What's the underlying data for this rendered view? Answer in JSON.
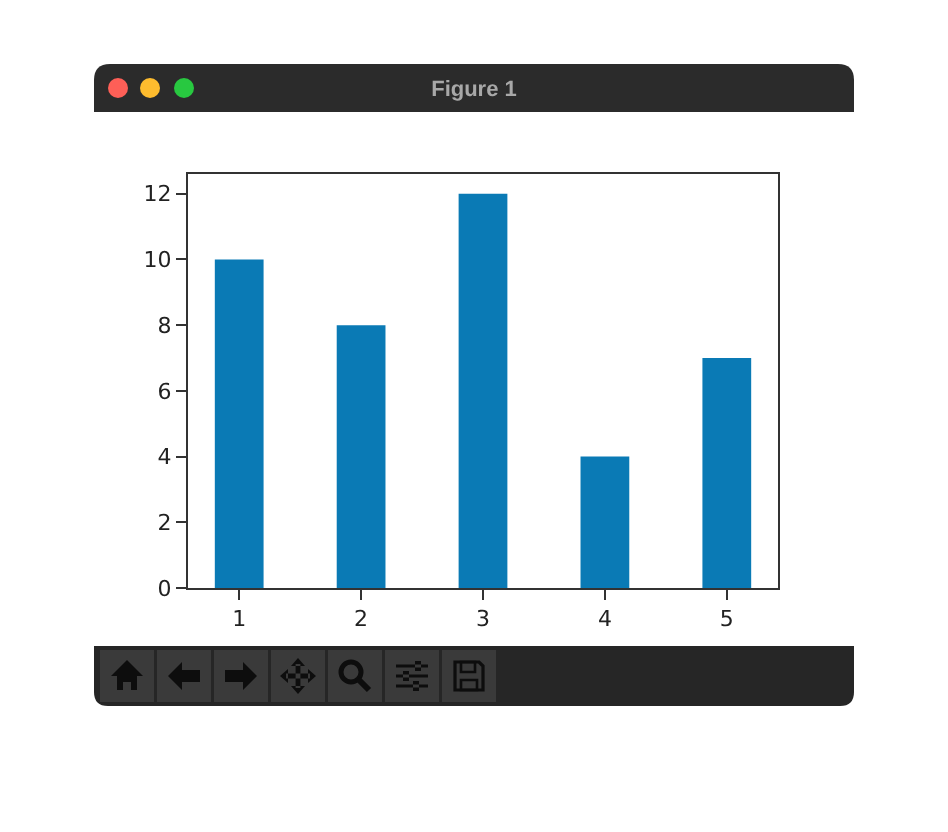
{
  "chart_data": {
    "type": "bar",
    "title": "Figure 1",
    "x": [
      1,
      2,
      3,
      4,
      5
    ],
    "values": [
      10,
      8,
      12,
      4,
      7
    ],
    "color": "#0a7ab5",
    "xlim": [
      0.58,
      5.42
    ],
    "xticks": [
      1,
      2,
      3,
      4,
      5
    ],
    "ylim": [
      0,
      12.6
    ],
    "yticks": [
      0,
      2,
      4,
      6,
      8,
      10,
      12
    ]
  }
}
